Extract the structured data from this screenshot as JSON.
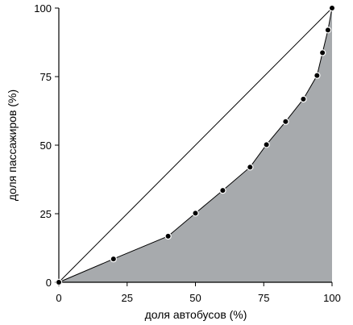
{
  "chart_data": {
    "type": "area",
    "title": "",
    "xlabel": "доля  автобусов (%)",
    "ylabel": "доля  пассажиров (%)",
    "xlim": [
      0,
      100
    ],
    "ylim": [
      0,
      100
    ],
    "x_ticks": [
      0,
      25,
      50,
      75,
      100
    ],
    "y_ticks": [
      0,
      25,
      50,
      75,
      100
    ],
    "grid": false,
    "legend": "none",
    "series": [
      {
        "x": [
          0,
          20,
          40,
          50,
          60,
          70,
          76,
          83,
          89.5,
          94.5,
          96.5,
          98.5,
          100
        ],
        "y": [
          0,
          8.5,
          16.8,
          25.2,
          33.5,
          42,
          50.2,
          58.6,
          66.8,
          75.4,
          83.7,
          92,
          100
        ],
        "fill_color": "#a7aaad",
        "line_color": "#000000",
        "marker": "circle"
      }
    ],
    "reference_line": {
      "x": [
        0,
        100
      ],
      "y": [
        0,
        100
      ],
      "color": "#000000"
    }
  }
}
